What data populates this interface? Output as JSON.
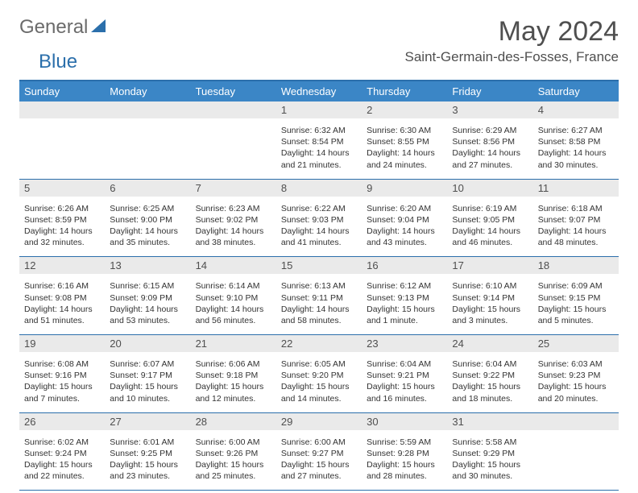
{
  "logo": {
    "text_general": "General",
    "text_blue": "Blue",
    "triangle_color": "#2b6fab"
  },
  "header": {
    "month_title": "May 2024",
    "location": "Saint-Germain-des-Fosses, France"
  },
  "colors": {
    "header_bg": "#3b86c6",
    "border": "#2b6fab",
    "day_number_bg": "#eaeaea",
    "text_main": "#4f4f4f",
    "text_cell": "#333333"
  },
  "day_headers": [
    "Sunday",
    "Monday",
    "Tuesday",
    "Wednesday",
    "Thursday",
    "Friday",
    "Saturday"
  ],
  "weeks": [
    [
      null,
      null,
      null,
      {
        "num": "1",
        "sunrise": "6:32 AM",
        "sunset": "8:54 PM",
        "daylight": "14 hours and 21 minutes."
      },
      {
        "num": "2",
        "sunrise": "6:30 AM",
        "sunset": "8:55 PM",
        "daylight": "14 hours and 24 minutes."
      },
      {
        "num": "3",
        "sunrise": "6:29 AM",
        "sunset": "8:56 PM",
        "daylight": "14 hours and 27 minutes."
      },
      {
        "num": "4",
        "sunrise": "6:27 AM",
        "sunset": "8:58 PM",
        "daylight": "14 hours and 30 minutes."
      }
    ],
    [
      {
        "num": "5",
        "sunrise": "6:26 AM",
        "sunset": "8:59 PM",
        "daylight": "14 hours and 32 minutes."
      },
      {
        "num": "6",
        "sunrise": "6:25 AM",
        "sunset": "9:00 PM",
        "daylight": "14 hours and 35 minutes."
      },
      {
        "num": "7",
        "sunrise": "6:23 AM",
        "sunset": "9:02 PM",
        "daylight": "14 hours and 38 minutes."
      },
      {
        "num": "8",
        "sunrise": "6:22 AM",
        "sunset": "9:03 PM",
        "daylight": "14 hours and 41 minutes."
      },
      {
        "num": "9",
        "sunrise": "6:20 AM",
        "sunset": "9:04 PM",
        "daylight": "14 hours and 43 minutes."
      },
      {
        "num": "10",
        "sunrise": "6:19 AM",
        "sunset": "9:05 PM",
        "daylight": "14 hours and 46 minutes."
      },
      {
        "num": "11",
        "sunrise": "6:18 AM",
        "sunset": "9:07 PM",
        "daylight": "14 hours and 48 minutes."
      }
    ],
    [
      {
        "num": "12",
        "sunrise": "6:16 AM",
        "sunset": "9:08 PM",
        "daylight": "14 hours and 51 minutes."
      },
      {
        "num": "13",
        "sunrise": "6:15 AM",
        "sunset": "9:09 PM",
        "daylight": "14 hours and 53 minutes."
      },
      {
        "num": "14",
        "sunrise": "6:14 AM",
        "sunset": "9:10 PM",
        "daylight": "14 hours and 56 minutes."
      },
      {
        "num": "15",
        "sunrise": "6:13 AM",
        "sunset": "9:11 PM",
        "daylight": "14 hours and 58 minutes."
      },
      {
        "num": "16",
        "sunrise": "6:12 AM",
        "sunset": "9:13 PM",
        "daylight": "15 hours and 1 minute."
      },
      {
        "num": "17",
        "sunrise": "6:10 AM",
        "sunset": "9:14 PM",
        "daylight": "15 hours and 3 minutes."
      },
      {
        "num": "18",
        "sunrise": "6:09 AM",
        "sunset": "9:15 PM",
        "daylight": "15 hours and 5 minutes."
      }
    ],
    [
      {
        "num": "19",
        "sunrise": "6:08 AM",
        "sunset": "9:16 PM",
        "daylight": "15 hours and 7 minutes."
      },
      {
        "num": "20",
        "sunrise": "6:07 AM",
        "sunset": "9:17 PM",
        "daylight": "15 hours and 10 minutes."
      },
      {
        "num": "21",
        "sunrise": "6:06 AM",
        "sunset": "9:18 PM",
        "daylight": "15 hours and 12 minutes."
      },
      {
        "num": "22",
        "sunrise": "6:05 AM",
        "sunset": "9:20 PM",
        "daylight": "15 hours and 14 minutes."
      },
      {
        "num": "23",
        "sunrise": "6:04 AM",
        "sunset": "9:21 PM",
        "daylight": "15 hours and 16 minutes."
      },
      {
        "num": "24",
        "sunrise": "6:04 AM",
        "sunset": "9:22 PM",
        "daylight": "15 hours and 18 minutes."
      },
      {
        "num": "25",
        "sunrise": "6:03 AM",
        "sunset": "9:23 PM",
        "daylight": "15 hours and 20 minutes."
      }
    ],
    [
      {
        "num": "26",
        "sunrise": "6:02 AM",
        "sunset": "9:24 PM",
        "daylight": "15 hours and 22 minutes."
      },
      {
        "num": "27",
        "sunrise": "6:01 AM",
        "sunset": "9:25 PM",
        "daylight": "15 hours and 23 minutes."
      },
      {
        "num": "28",
        "sunrise": "6:00 AM",
        "sunset": "9:26 PM",
        "daylight": "15 hours and 25 minutes."
      },
      {
        "num": "29",
        "sunrise": "6:00 AM",
        "sunset": "9:27 PM",
        "daylight": "15 hours and 27 minutes."
      },
      {
        "num": "30",
        "sunrise": "5:59 AM",
        "sunset": "9:28 PM",
        "daylight": "15 hours and 28 minutes."
      },
      {
        "num": "31",
        "sunrise": "5:58 AM",
        "sunset": "9:29 PM",
        "daylight": "15 hours and 30 minutes."
      },
      null
    ]
  ],
  "labels": {
    "sunrise": "Sunrise:",
    "sunset": "Sunset:",
    "daylight": "Daylight:"
  }
}
